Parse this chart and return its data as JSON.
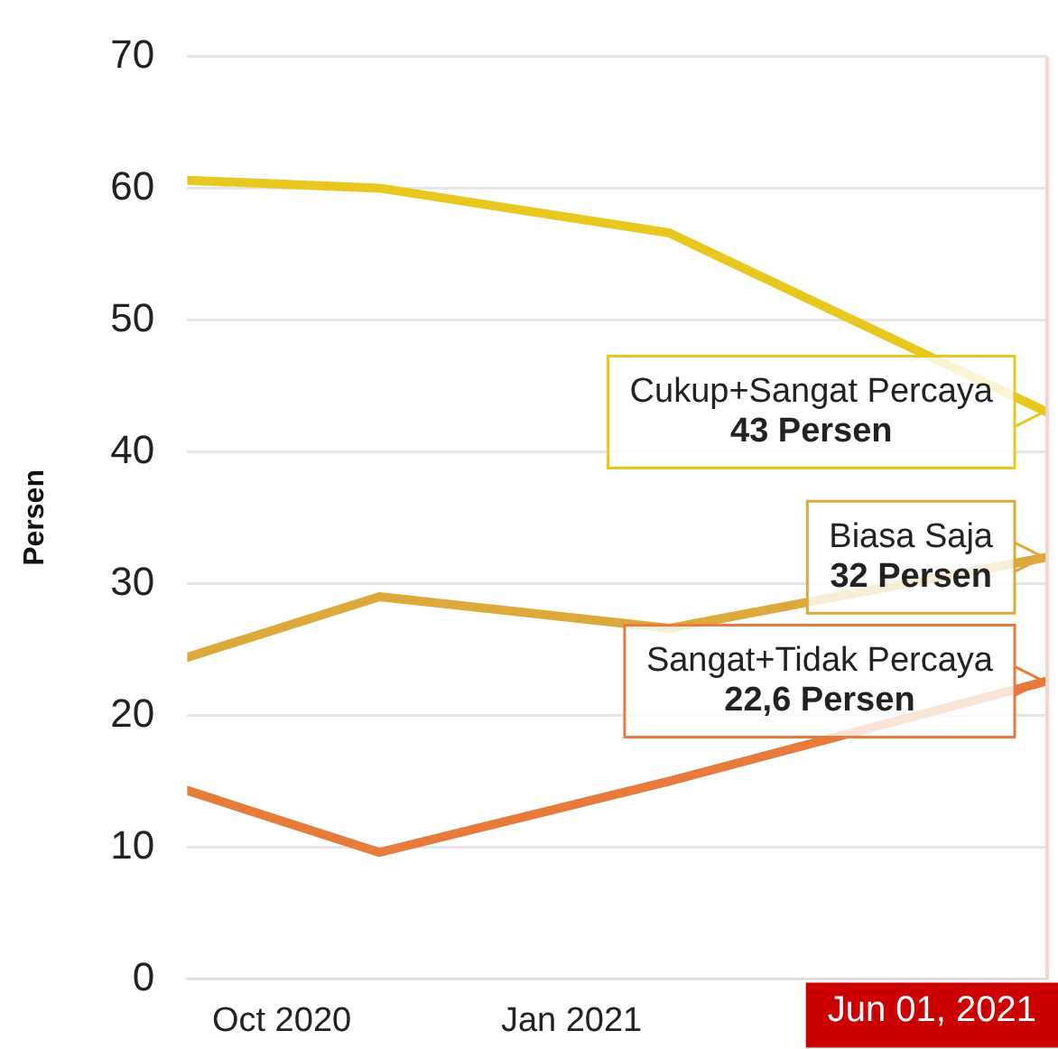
{
  "chart_data": {
    "type": "line",
    "ylabel": "Persen",
    "x": [
      "2020-09-01",
      "2020-11-01",
      "2021-02-01",
      "2021-06-01"
    ],
    "series": [
      {
        "color": "#e8c81e",
        "values": [
          60.6,
          60.0,
          56.6,
          43
        ]
      },
      {
        "color": "#dca93a",
        "values": [
          24.4,
          29.0,
          26.6,
          32
        ]
      },
      {
        "color": "#e67b3c",
        "values": [
          14.3,
          9.6,
          15.0,
          22.6
        ]
      }
    ],
    "xlim": [
      "2020-09-01",
      "2021-06-01"
    ],
    "xticks": [
      {
        "value": "2020-10-01",
        "label": "Oct 2020"
      },
      {
        "value": "2021-01-01",
        "label": "Jan 2021"
      }
    ],
    "ylim": [
      0,
      70
    ],
    "yticks": [
      0,
      10,
      20,
      30,
      40,
      50,
      60,
      70
    ],
    "grid": "y",
    "marker": "none",
    "line_style": "solid",
    "ref_lines": [
      {
        "axis": "x",
        "value": "2021-06-01",
        "label": "Jun 01, 2021"
      }
    ],
    "annotations": [
      {
        "text": "Cukup+Sangat Percaya\n43 Persen",
        "x": "2021-06-01",
        "y": 43
      },
      {
        "text": "Biasa Saja\n32 Persen",
        "x": "2021-06-01",
        "y": 32
      },
      {
        "text": "Sangat+Tidak Percaya\n22,6 Persen",
        "x": "2021-06-01",
        "y": 22.6
      }
    ]
  }
}
